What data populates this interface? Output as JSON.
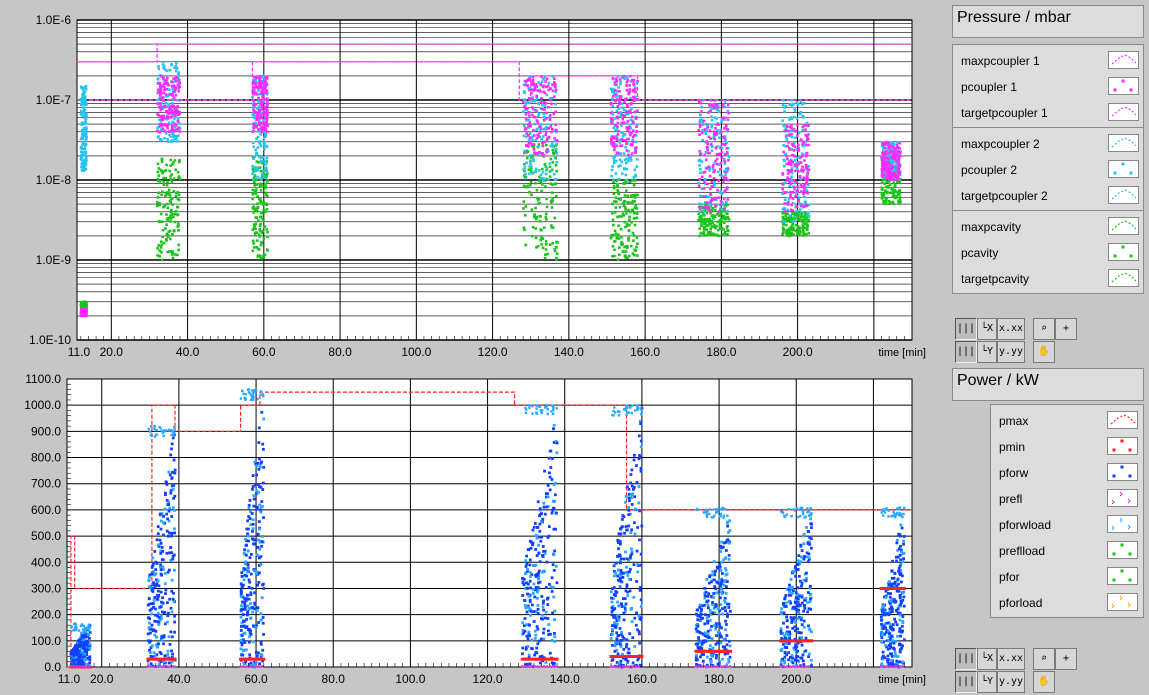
{
  "colors": {
    "magenta": "#ff2aff",
    "cyan": "#27c3f0",
    "green": "#19c419",
    "red": "#ff2020",
    "blue": "#1240ff",
    "lightblue": "#29a8ff",
    "pink": "#e030e0",
    "orange": "#ffaa00"
  },
  "chart_data": [
    {
      "type": "scatter",
      "title": "Pressure / mbar",
      "xlabel": "time [min]",
      "xlim": [
        11.0,
        230.0
      ],
      "x_ticks": [
        "11.0",
        "20.0",
        "40.0",
        "60.0",
        "80.0",
        "100.0",
        "120.0",
        "140.0",
        "160.0",
        "180.0",
        "200.0"
      ],
      "y_scale": "log",
      "ylim": [
        1e-10,
        1e-06
      ],
      "y_ticks": [
        "1.0E-10",
        "1.0E-9",
        "1.0E-8",
        "1.0E-7",
        "1.0E-6"
      ],
      "grid": true,
      "legend": [
        {
          "name": "maxpcoupler 1",
          "color": "#ff2aff",
          "style": "dashed"
        },
        {
          "name": "pcoupler 1",
          "color": "#ff2aff",
          "style": "dots"
        },
        {
          "name": "targetpcoupler 1",
          "color": "#ff2aff",
          "style": "dashed"
        },
        {
          "name": "maxpcoupler 2",
          "color": "#27c3f0",
          "style": "dashed"
        },
        {
          "name": "pcoupler 2",
          "color": "#27c3f0",
          "style": "dots"
        },
        {
          "name": "targetpcoupler 2",
          "color": "#27c3f0",
          "style": "dashed"
        },
        {
          "name": "maxpcavity",
          "color": "#19c419",
          "style": "dashed"
        },
        {
          "name": "pcavity",
          "color": "#19c419",
          "style": "dots"
        },
        {
          "name": "targetpcavity",
          "color": "#19c419",
          "style": "dashed"
        }
      ],
      "lines": [
        {
          "color": "#ff2aff",
          "points": [
            [
              11,
              3e-07
            ],
            [
              32,
              3e-07
            ],
            [
              32,
              5e-07
            ],
            [
              230,
              5e-07
            ]
          ]
        },
        {
          "color": "#ff2aff",
          "points": [
            [
              11,
              1e-07
            ],
            [
              57,
              1e-07
            ],
            [
              57,
              3e-07
            ],
            [
              127,
              3e-07
            ],
            [
              127,
              1e-07
            ],
            [
              130,
              1e-07
            ],
            [
              130,
              2e-07
            ],
            [
              158,
              2e-07
            ],
            [
              158,
              1e-07
            ],
            [
              230,
              1e-07
            ]
          ]
        }
      ],
      "bursts": [
        {
          "x0": 12.0,
          "x1": 13.5,
          "cyan": [
            1.3e-08,
            1.5e-07
          ],
          "magenta": [
            2e-10,
            2.5e-10
          ],
          "green": [
            2.5e-10,
            3e-10
          ]
        },
        {
          "x0": 32.0,
          "x1": 38.0,
          "cyan": [
            3e-08,
            3e-07
          ],
          "magenta": [
            4e-08,
            2e-07
          ],
          "green": [
            1e-09,
            2e-08
          ]
        },
        {
          "x0": 57.0,
          "x1": 61.0,
          "cyan": [
            1e-08,
            2e-07
          ],
          "magenta": [
            4e-08,
            2e-07
          ],
          "green": [
            1e-09,
            2e-08
          ]
        },
        {
          "x0": 128.0,
          "x1": 137.0,
          "cyan": [
            1e-08,
            2e-07
          ],
          "magenta": [
            2e-08,
            2e-07
          ],
          "green": [
            1e-09,
            3e-08
          ]
        },
        {
          "x0": 151.0,
          "x1": 158.0,
          "cyan": [
            1e-08,
            2e-07
          ],
          "magenta": [
            2e-08,
            2e-07
          ],
          "green": [
            1e-09,
            1e-08
          ]
        },
        {
          "x0": 174.0,
          "x1": 182.0,
          "cyan": [
            4e-09,
            1e-07
          ],
          "magenta": [
            4e-09,
            1e-07
          ],
          "green": [
            2e-09,
            5e-09
          ]
        },
        {
          "x0": 196.0,
          "x1": 203.0,
          "cyan": [
            3e-09,
            1e-07
          ],
          "magenta": [
            4e-09,
            5e-08
          ],
          "green": [
            2e-09,
            4e-09
          ]
        },
        {
          "x0": 222.0,
          "x1": 227.0,
          "cyan": [
            1e-08,
            3e-08
          ],
          "magenta": [
            1e-08,
            3e-08
          ],
          "green": [
            5e-09,
            2e-08
          ]
        }
      ]
    },
    {
      "type": "scatter",
      "title": "Power / kW",
      "xlabel": "time [min]",
      "xlim": [
        11.0,
        230.0
      ],
      "x_ticks": [
        "11.0",
        "20.0",
        "40.0",
        "60.0",
        "80.0",
        "100.0",
        "120.0",
        "140.0",
        "160.0",
        "180.0",
        "200.0"
      ],
      "ylim": [
        0,
        1100
      ],
      "y_ticks": [
        "0.0",
        "100.0",
        "200.0",
        "300.0",
        "400.0",
        "500.0",
        "600.0",
        "700.0",
        "800.0",
        "900.0",
        "1000.0",
        "1100.0"
      ],
      "grid": true,
      "legend": [
        {
          "name": "pmax",
          "color": "#ff2020",
          "style": "dashed"
        },
        {
          "name": "pmin",
          "color": "#ff2020",
          "style": "dots"
        },
        {
          "name": "pforw",
          "color": "#1240ff",
          "style": "dots"
        },
        {
          "name": "prefl",
          "color": "#e030e0",
          "style": "chevrons"
        },
        {
          "name": "pforwload",
          "color": "#29a8ff",
          "style": "chevrons"
        },
        {
          "name": "preflload",
          "color": "#19c419",
          "style": "dots"
        },
        {
          "name": "pfor",
          "color": "#19c419",
          "style": "dots"
        },
        {
          "name": "pforload",
          "color": "#ffaa00",
          "style": "chevrons"
        }
      ],
      "pmax_line": [
        [
          11,
          0
        ],
        [
          12,
          0
        ],
        [
          12,
          500
        ],
        [
          13,
          500
        ],
        [
          13,
          300
        ],
        [
          33,
          300
        ],
        [
          33,
          1000
        ],
        [
          39,
          1000
        ],
        [
          39,
          900
        ],
        [
          56,
          900
        ],
        [
          56,
          1000
        ],
        [
          61,
          1000
        ],
        [
          61,
          1050
        ],
        [
          127,
          1050
        ],
        [
          127,
          1000
        ],
        [
          156,
          1000
        ],
        [
          156,
          600
        ],
        [
          230,
          600
        ]
      ],
      "bursts": [
        {
          "x0": 12.0,
          "x1": 17.0,
          "blue_max": 170,
          "pmin": 0
        },
        {
          "x0": 32.0,
          "x1": 39.0,
          "blue_max": 920,
          "pmin": 30
        },
        {
          "x0": 56.0,
          "x1": 62.0,
          "blue_max": 1060,
          "pmin": 30
        },
        {
          "x0": 129.0,
          "x1": 138.0,
          "blue_max": 1000,
          "pmin": 30
        },
        {
          "x0": 152.0,
          "x1": 160.0,
          "blue_max": 1000,
          "pmin": 40
        },
        {
          "x0": 174.0,
          "x1": 183.0,
          "blue_max": 610,
          "pmin": 60
        },
        {
          "x0": 196.0,
          "x1": 204.0,
          "blue_max": 610,
          "pmin": 100
        },
        {
          "x0": 222.0,
          "x1": 228.0,
          "blue_max": 610,
          "pmin": 300
        }
      ]
    }
  ],
  "toolbar": {
    "x_format": "x.xx",
    "y_format": "y.yy",
    "x_axis": "X",
    "y_axis": "Y",
    "zoom_icon": "magnifier-zoom-icon",
    "cursor_icon": "crosshair-icon",
    "pan_icon": "hand-pan-icon"
  }
}
